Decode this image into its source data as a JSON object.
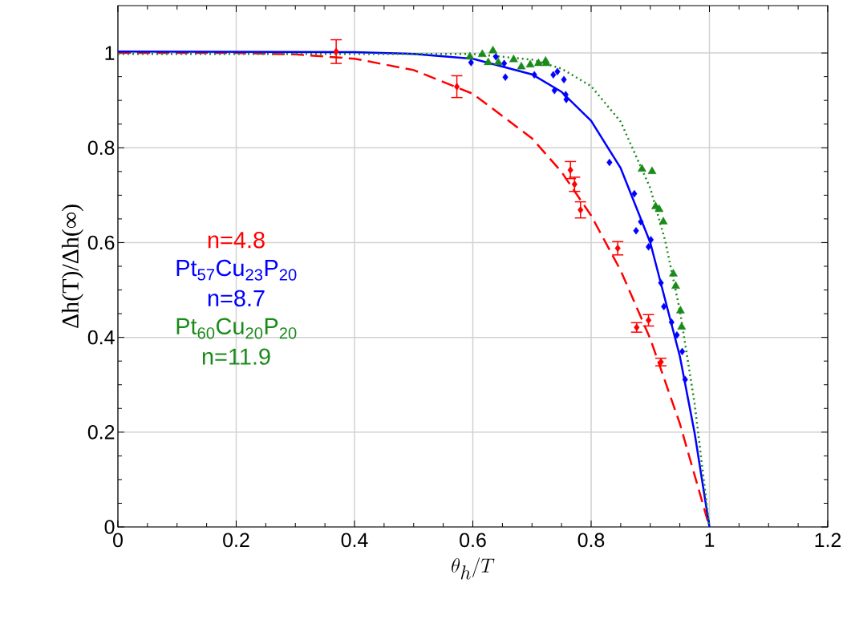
{
  "chart_data": {
    "type": "scatter",
    "xlabel": "\\theta_h/T",
    "ylabel": "Δh(T)/Δh(∞)",
    "xlim": [
      0,
      1.2
    ],
    "xticks": [
      0,
      0.2,
      0.4,
      0.6,
      0.8,
      1,
      1.2
    ],
    "ylim": [
      0,
      1.1
    ],
    "yticks": [
      0,
      0.2,
      0.4,
      0.6,
      0.8,
      1
    ],
    "grid": true,
    "series": [
      {
        "name": "n=4.8",
        "type": "scatter",
        "marker": "diamond",
        "color": "#ff0000",
        "x": [
          0.369,
          0.573,
          0.765,
          0.772,
          0.782,
          0.845,
          0.877,
          0.897,
          0.918
        ],
        "values": [
          1.003,
          0.929,
          0.753,
          0.723,
          0.669,
          0.588,
          0.421,
          0.436,
          0.348
        ],
        "errors": [
          0.025,
          0.023,
          0.018,
          0.015,
          0.017,
          0.014,
          0.01,
          0.012,
          0.008
        ]
      },
      {
        "name": "Pt$_{57}$Cu$_{23}$P$_{20}$ n=8.7",
        "type": "scatter",
        "marker": "diamond",
        "color": "#0000ff",
        "x": [
          0.597,
          0.639,
          0.653,
          0.655,
          0.704,
          0.736,
          0.738,
          0.743,
          0.754,
          0.757,
          0.758,
          0.831,
          0.873,
          0.876,
          0.884,
          0.897,
          0.901,
          0.918,
          0.923,
          0.936,
          0.945,
          0.954,
          0.959
        ],
        "values": [
          0.98,
          0.992,
          0.978,
          0.949,
          0.954,
          0.954,
          0.921,
          0.961,
          0.944,
          0.912,
          0.902,
          0.769,
          0.703,
          0.625,
          0.644,
          0.591,
          0.606,
          0.515,
          0.465,
          0.432,
          0.405,
          0.37,
          0.311
        ]
      },
      {
        "name": "Pt$_{60}$Cu$_{20}$P$_{20}$ n=11.9",
        "type": "scatter",
        "marker": "triangle",
        "color": "#1a8a1a",
        "x": [
          0.595,
          0.616,
          0.626,
          0.634,
          0.643,
          0.669,
          0.682,
          0.697,
          0.711,
          0.723,
          0.724,
          0.886,
          0.903,
          0.909,
          0.915,
          0.922,
          0.939,
          0.943,
          0.951,
          0.953
        ],
        "values": [
          0.992,
          0.997,
          0.98,
          1.005,
          0.98,
          0.986,
          0.971,
          0.975,
          0.978,
          0.983,
          0.978,
          0.755,
          0.75,
          0.676,
          0.67,
          0.644,
          0.534,
          0.508,
          0.456,
          0.422
        ]
      },
      {
        "type": "line",
        "line_style": "dashed",
        "color": "#ff0000",
        "x": [
          0,
          0.2,
          0.3,
          0.4,
          0.5,
          0.6,
          0.7,
          0.75,
          0.8,
          0.85,
          0.9,
          0.95,
          1
        ],
        "values": [
          1.0,
          1.0,
          0.997,
          0.988,
          0.964,
          0.914,
          0.82,
          0.749,
          0.657,
          0.541,
          0.397,
          0.218,
          0
        ]
      },
      {
        "type": "line",
        "line_style": "solid",
        "color": "#0000ff",
        "x": [
          0,
          0.4,
          0.5,
          0.6,
          0.7,
          0.75,
          0.8,
          0.85,
          0.9,
          0.95,
          0.975,
          1
        ],
        "values": [
          1.003,
          1.002,
          0.998,
          0.988,
          0.955,
          0.918,
          0.857,
          0.757,
          0.6,
          0.36,
          0.198,
          0
        ]
      },
      {
        "type": "line",
        "line_style": "dotted",
        "color": "#1a8a1a",
        "x": [
          0,
          0.5,
          0.6,
          0.7,
          0.75,
          0.8,
          0.85,
          0.9,
          0.925,
          0.95,
          0.975,
          1
        ],
        "values": [
          0.998,
          0.998,
          0.998,
          0.986,
          0.967,
          0.93,
          0.855,
          0.715,
          0.605,
          0.457,
          0.26,
          0
        ]
      }
    ]
  }
}
